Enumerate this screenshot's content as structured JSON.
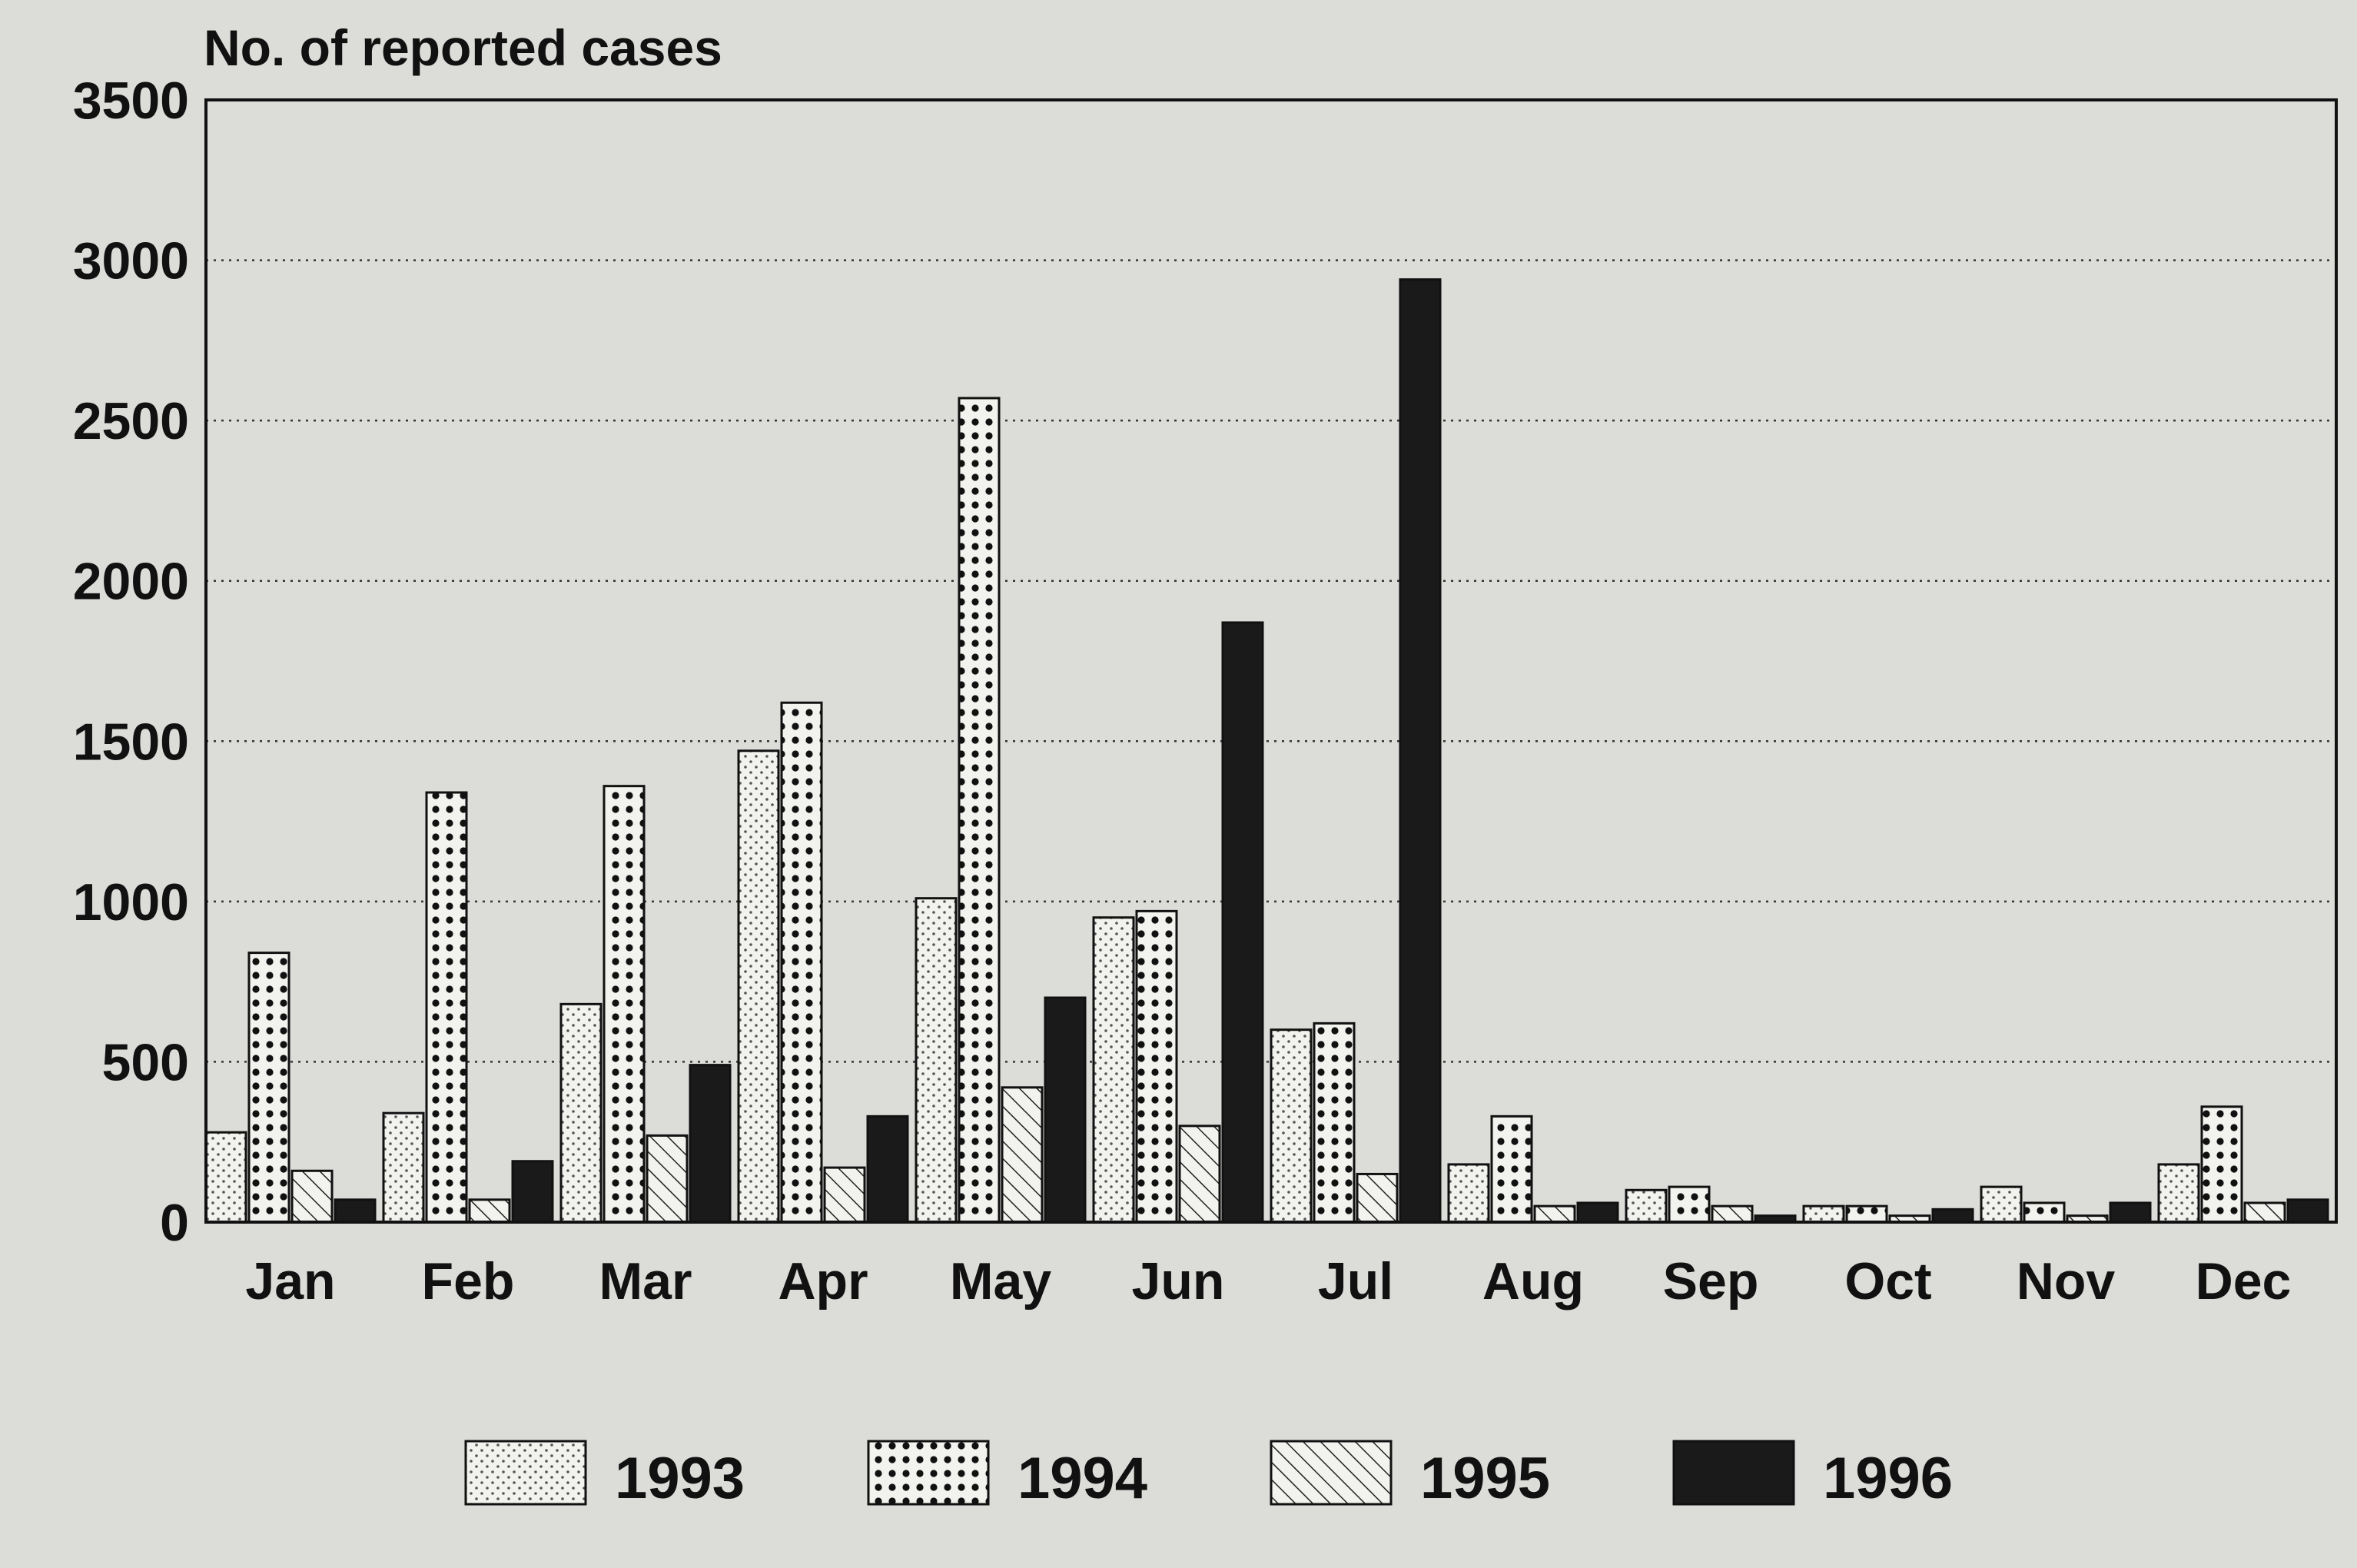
{
  "chart_data": {
    "type": "bar",
    "title": "",
    "ylabel": "No. of reported cases",
    "xlabel": "",
    "ylim": [
      0,
      3500
    ],
    "yticks": [
      0,
      500,
      1000,
      1500,
      2000,
      2500,
      3000,
      3500
    ],
    "grid": "horizontal dotted",
    "legend_position": "bottom",
    "categories": [
      "Jan",
      "Feb",
      "Mar",
      "Apr",
      "May",
      "Jun",
      "Jul",
      "Aug",
      "Sep",
      "Oct",
      "Nov",
      "Dec"
    ],
    "series": [
      {
        "name": "1993",
        "pattern": "light-dots",
        "color": "#f2f2ee",
        "values": [
          280,
          340,
          680,
          1470,
          1010,
          950,
          600,
          180,
          100,
          50,
          110,
          180
        ]
      },
      {
        "name": "1994",
        "pattern": "dense-dots",
        "color": "#f2f2ee",
        "values": [
          840,
          1340,
          1360,
          1620,
          2570,
          970,
          620,
          330,
          110,
          50,
          60,
          360
        ]
      },
      {
        "name": "1995",
        "pattern": "diagonal-hatch",
        "color": "#f2f2ee",
        "values": [
          160,
          70,
          270,
          170,
          420,
          300,
          150,
          50,
          50,
          20,
          20,
          60
        ]
      },
      {
        "name": "1996",
        "pattern": "solid",
        "color": "#1a1a1a",
        "values": [
          70,
          190,
          490,
          330,
          700,
          1870,
          2940,
          60,
          20,
          40,
          60,
          70
        ]
      }
    ]
  }
}
